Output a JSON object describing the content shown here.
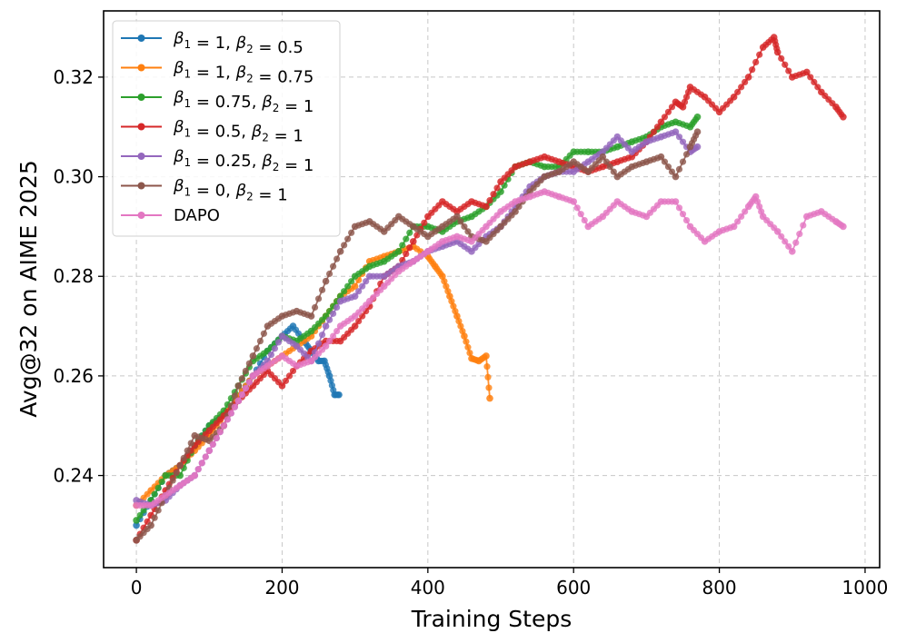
{
  "chart_data": {
    "type": "line",
    "title": "",
    "xlabel": "Training Steps",
    "ylabel": "Avg@32 on AIME 2025",
    "xlim": [
      -45,
      1020
    ],
    "ylim": [
      0.2215,
      0.3333
    ],
    "xticks": [
      0,
      200,
      400,
      600,
      800,
      1000
    ],
    "xtick_labels": [
      "0",
      "200",
      "400",
      "600",
      "800",
      "1000"
    ],
    "yticks": [
      0.24,
      0.26,
      0.28,
      0.3,
      0.32
    ],
    "ytick_labels": [
      "0.24",
      "0.26",
      "0.28",
      "0.30",
      "0.32"
    ],
    "grid": true,
    "legend_position": "top-left",
    "series": [
      {
        "name": "β1 = 1, β2 = 0.5",
        "beta1": "1",
        "beta2": "0.5",
        "color": "#1f77b4",
        "x": [
          0,
          20,
          40,
          60,
          80,
          100,
          120,
          140,
          160,
          180,
          200,
          215,
          230,
          240,
          250,
          258,
          265,
          272,
          278
        ],
        "y": [
          0.23,
          0.235,
          0.24,
          0.242,
          0.246,
          0.25,
          0.252,
          0.256,
          0.26,
          0.265,
          0.268,
          0.27,
          0.267,
          0.265,
          0.263,
          0.263,
          0.26,
          0.2562,
          0.2562
        ]
      },
      {
        "name": "β1 = 1, β2 = 0.75",
        "beta1": "1",
        "beta2": "0.75",
        "color": "#ff7f0e",
        "x": [
          0,
          20,
          40,
          60,
          80,
          100,
          120,
          140,
          160,
          180,
          200,
          220,
          240,
          260,
          280,
          300,
          320,
          340,
          360,
          380,
          400,
          410,
          420,
          430,
          440,
          450,
          460,
          470,
          480,
          485
        ],
        "y": [
          0.234,
          0.237,
          0.24,
          0.242,
          0.245,
          0.248,
          0.252,
          0.256,
          0.26,
          0.262,
          0.264,
          0.266,
          0.268,
          0.272,
          0.276,
          0.278,
          0.283,
          0.284,
          0.285,
          0.286,
          0.284,
          0.282,
          0.28,
          0.276,
          0.272,
          0.268,
          0.2635,
          0.263,
          0.264,
          0.2555
        ]
      },
      {
        "name": "β1 = 0.75, β2 = 1",
        "beta1": "0.75",
        "beta2": "1",
        "color": "#2ca02c",
        "x": [
          0,
          20,
          40,
          60,
          80,
          100,
          120,
          140,
          160,
          180,
          200,
          220,
          240,
          260,
          280,
          300,
          320,
          340,
          360,
          380,
          400,
          420,
          440,
          460,
          480,
          500,
          520,
          540,
          560,
          580,
          600,
          620,
          640,
          660,
          680,
          700,
          720,
          740,
          760,
          770
        ],
        "y": [
          0.231,
          0.235,
          0.24,
          0.24,
          0.246,
          0.25,
          0.253,
          0.258,
          0.263,
          0.265,
          0.268,
          0.267,
          0.269,
          0.272,
          0.276,
          0.28,
          0.282,
          0.283,
          0.285,
          0.29,
          0.29,
          0.289,
          0.291,
          0.292,
          0.294,
          0.297,
          0.302,
          0.303,
          0.302,
          0.302,
          0.305,
          0.305,
          0.305,
          0.306,
          0.307,
          0.308,
          0.31,
          0.311,
          0.31,
          0.312
        ]
      },
      {
        "name": "β1 = 0.5, β2 = 1",
        "beta1": "0.5",
        "beta2": "1",
        "color": "#d62728",
        "x": [
          0,
          20,
          40,
          60,
          80,
          100,
          120,
          140,
          160,
          180,
          200,
          220,
          240,
          260,
          280,
          300,
          320,
          340,
          360,
          380,
          400,
          420,
          440,
          460,
          480,
          500,
          520,
          540,
          560,
          580,
          600,
          620,
          640,
          660,
          680,
          700,
          720,
          740,
          750,
          760,
          780,
          800,
          820,
          840,
          860,
          875,
          880,
          900,
          920,
          940,
          960,
          970
        ],
        "y": [
          0.227,
          0.232,
          0.237,
          0.242,
          0.246,
          0.249,
          0.252,
          0.255,
          0.258,
          0.261,
          0.258,
          0.262,
          0.265,
          0.267,
          0.267,
          0.27,
          0.274,
          0.28,
          0.282,
          0.287,
          0.292,
          0.295,
          0.293,
          0.295,
          0.294,
          0.299,
          0.302,
          0.303,
          0.304,
          0.303,
          0.302,
          0.301,
          0.302,
          0.303,
          0.304,
          0.307,
          0.311,
          0.315,
          0.314,
          0.318,
          0.316,
          0.313,
          0.316,
          0.32,
          0.326,
          0.328,
          0.325,
          0.32,
          0.321,
          0.317,
          0.314,
          0.312
        ]
      },
      {
        "name": "β1 = 0.25, β2 = 1",
        "beta1": "0.25",
        "beta2": "1",
        "color": "#9467bd",
        "x": [
          0,
          20,
          40,
          60,
          80,
          100,
          120,
          140,
          160,
          180,
          200,
          220,
          240,
          260,
          280,
          300,
          320,
          340,
          360,
          380,
          400,
          420,
          440,
          460,
          480,
          500,
          520,
          540,
          560,
          580,
          600,
          620,
          640,
          660,
          680,
          700,
          720,
          740,
          760,
          770
        ],
        "y": [
          0.235,
          0.234,
          0.235,
          0.238,
          0.24,
          0.245,
          0.25,
          0.255,
          0.26,
          0.263,
          0.268,
          0.266,
          0.263,
          0.27,
          0.275,
          0.276,
          0.28,
          0.28,
          0.282,
          0.283,
          0.285,
          0.286,
          0.287,
          0.285,
          0.288,
          0.29,
          0.294,
          0.298,
          0.3,
          0.301,
          0.301,
          0.303,
          0.305,
          0.308,
          0.305,
          0.307,
          0.308,
          0.309,
          0.305,
          0.306
        ]
      },
      {
        "name": "β1 = 0, β2 = 1",
        "beta1": "0",
        "beta2": "1",
        "color": "#8c564b",
        "x": [
          0,
          20,
          40,
          60,
          80,
          100,
          120,
          140,
          160,
          180,
          200,
          220,
          240,
          260,
          280,
          300,
          320,
          340,
          360,
          380,
          400,
          420,
          440,
          460,
          480,
          500,
          520,
          540,
          560,
          580,
          600,
          620,
          640,
          660,
          680,
          700,
          720,
          740,
          760,
          770
        ],
        "y": [
          0.227,
          0.23,
          0.236,
          0.242,
          0.248,
          0.247,
          0.25,
          0.258,
          0.264,
          0.27,
          0.272,
          0.273,
          0.272,
          0.279,
          0.285,
          0.29,
          0.291,
          0.289,
          0.292,
          0.29,
          0.288,
          0.29,
          0.292,
          0.288,
          0.287,
          0.29,
          0.293,
          0.297,
          0.3,
          0.301,
          0.303,
          0.301,
          0.304,
          0.3,
          0.302,
          0.303,
          0.304,
          0.3,
          0.306,
          0.309
        ]
      },
      {
        "name": "DAPO",
        "color": "#e377c2",
        "x": [
          0,
          20,
          40,
          60,
          80,
          100,
          120,
          140,
          160,
          180,
          200,
          220,
          240,
          260,
          280,
          300,
          320,
          340,
          360,
          380,
          400,
          420,
          440,
          460,
          480,
          500,
          520,
          540,
          560,
          580,
          600,
          620,
          640,
          660,
          680,
          700,
          720,
          740,
          760,
          780,
          800,
          820,
          840,
          850,
          860,
          880,
          900,
          920,
          940,
          960,
          970
        ],
        "y": [
          0.234,
          0.234,
          0.236,
          0.238,
          0.24,
          0.245,
          0.25,
          0.255,
          0.26,
          0.262,
          0.264,
          0.262,
          0.263,
          0.266,
          0.27,
          0.272,
          0.275,
          0.278,
          0.281,
          0.283,
          0.285,
          0.287,
          0.288,
          0.287,
          0.29,
          0.293,
          0.295,
          0.296,
          0.297,
          0.296,
          0.295,
          0.29,
          0.292,
          0.295,
          0.293,
          0.292,
          0.295,
          0.295,
          0.29,
          0.287,
          0.289,
          0.29,
          0.294,
          0.296,
          0.292,
          0.289,
          0.285,
          0.292,
          0.293,
          0.291,
          0.29
        ]
      }
    ]
  }
}
